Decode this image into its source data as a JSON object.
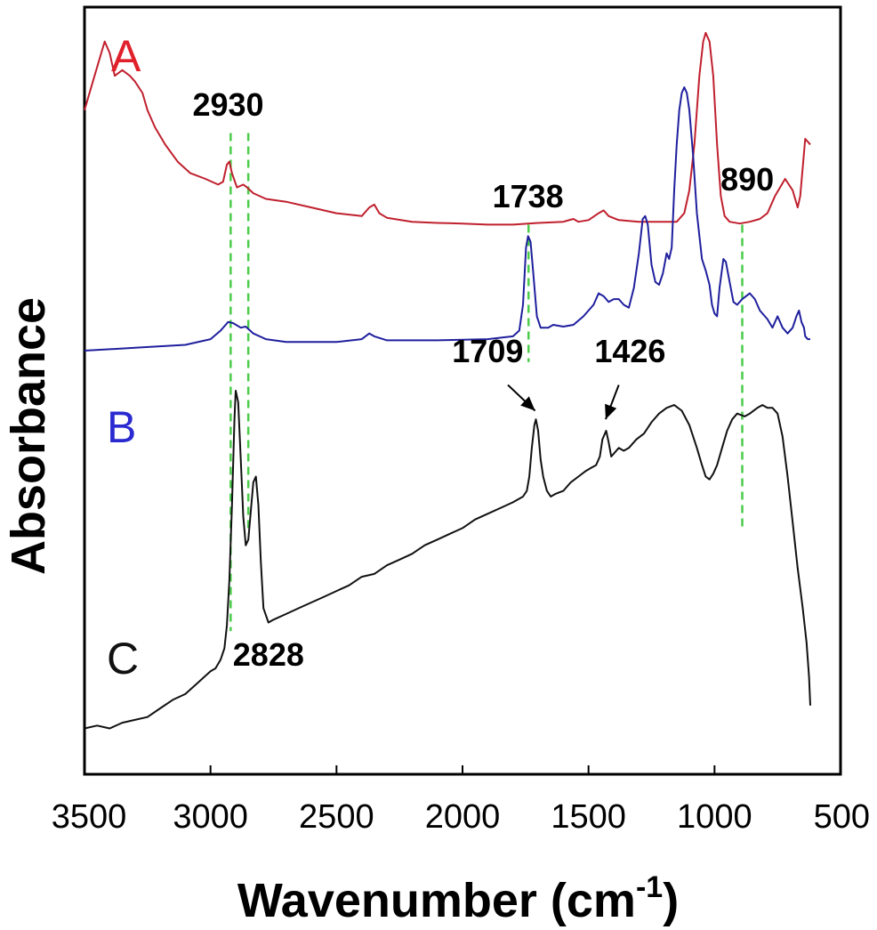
{
  "chart_data": {
    "type": "line",
    "xlabel_main": "Wavenumber (cm",
    "xlabel_sup": "-1",
    "xlabel_close": ")",
    "ylabel": "Absorbance",
    "xlim": [
      3500,
      500
    ],
    "x_reversed": true,
    "x_ticks": [
      3500,
      3000,
      2500,
      2000,
      1500,
      1000,
      500
    ],
    "y_ticks": [],
    "grid": false,
    "legend": "none",
    "series": [
      {
        "name": "A",
        "color": "#c0202e",
        "label_color": "#e0202a",
        "points": [
          [
            3500,
            0.44
          ],
          [
            3460,
            0.5
          ],
          [
            3420,
            0.56
          ],
          [
            3400,
            0.54
          ],
          [
            3380,
            0.5
          ],
          [
            3350,
            0.51
          ],
          [
            3320,
            0.5
          ],
          [
            3300,
            0.49
          ],
          [
            3270,
            0.47
          ],
          [
            3250,
            0.44
          ],
          [
            3220,
            0.41
          ],
          [
            3180,
            0.38
          ],
          [
            3130,
            0.35
          ],
          [
            3080,
            0.33
          ],
          [
            3020,
            0.32
          ],
          [
            2970,
            0.31
          ],
          [
            2950,
            0.315
          ],
          [
            2935,
            0.345
          ],
          [
            2925,
            0.35
          ],
          [
            2915,
            0.33
          ],
          [
            2895,
            0.305
          ],
          [
            2870,
            0.31
          ],
          [
            2855,
            0.305
          ],
          [
            2830,
            0.295
          ],
          [
            2780,
            0.285
          ],
          [
            2700,
            0.28
          ],
          [
            2600,
            0.27
          ],
          [
            2500,
            0.26
          ],
          [
            2400,
            0.255
          ],
          [
            2370,
            0.27
          ],
          [
            2350,
            0.275
          ],
          [
            2330,
            0.26
          ],
          [
            2300,
            0.252
          ],
          [
            2200,
            0.245
          ],
          [
            2100,
            0.243
          ],
          [
            2000,
            0.242
          ],
          [
            1900,
            0.24
          ],
          [
            1800,
            0.24
          ],
          [
            1740,
            0.242
          ],
          [
            1700,
            0.243
          ],
          [
            1600,
            0.245
          ],
          [
            1560,
            0.25
          ],
          [
            1540,
            0.245
          ],
          [
            1500,
            0.248
          ],
          [
            1460,
            0.26
          ],
          [
            1440,
            0.265
          ],
          [
            1420,
            0.255
          ],
          [
            1380,
            0.248
          ],
          [
            1300,
            0.245
          ],
          [
            1250,
            0.245
          ],
          [
            1200,
            0.245
          ],
          [
            1150,
            0.245
          ],
          [
            1120,
            0.26
          ],
          [
            1100,
            0.3
          ],
          [
            1080,
            0.38
          ],
          [
            1060,
            0.5
          ],
          [
            1045,
            0.56
          ],
          [
            1035,
            0.575
          ],
          [
            1020,
            0.56
          ],
          [
            1005,
            0.5
          ],
          [
            990,
            0.38
          ],
          [
            975,
            0.29
          ],
          [
            960,
            0.255
          ],
          [
            940,
            0.245
          ],
          [
            900,
            0.242
          ],
          [
            860,
            0.245
          ],
          [
            820,
            0.25
          ],
          [
            790,
            0.26
          ],
          [
            760,
            0.29
          ],
          [
            720,
            0.32
          ],
          [
            690,
            0.3
          ],
          [
            670,
            0.27
          ],
          [
            660,
            0.29
          ],
          [
            640,
            0.39
          ],
          [
            620,
            0.38
          ]
        ]
      },
      {
        "name": "B",
        "color": "#1f1f9e",
        "label_color": "#2a2ad0",
        "points": [
          [
            3500,
            0.02
          ],
          [
            3300,
            0.025
          ],
          [
            3100,
            0.03
          ],
          [
            3000,
            0.04
          ],
          [
            2960,
            0.055
          ],
          [
            2930,
            0.07
          ],
          [
            2910,
            0.068
          ],
          [
            2880,
            0.06
          ],
          [
            2860,
            0.062
          ],
          [
            2830,
            0.05
          ],
          [
            2780,
            0.04
          ],
          [
            2700,
            0.035
          ],
          [
            2600,
            0.035
          ],
          [
            2500,
            0.035
          ],
          [
            2400,
            0.04
          ],
          [
            2370,
            0.05
          ],
          [
            2350,
            0.045
          ],
          [
            2300,
            0.038
          ],
          [
            2100,
            0.038
          ],
          [
            1900,
            0.04
          ],
          [
            1800,
            0.045
          ],
          [
            1775,
            0.055
          ],
          [
            1760,
            0.1
          ],
          [
            1748,
            0.2
          ],
          [
            1740,
            0.22
          ],
          [
            1730,
            0.21
          ],
          [
            1720,
            0.16
          ],
          [
            1705,
            0.08
          ],
          [
            1690,
            0.06
          ],
          [
            1660,
            0.06
          ],
          [
            1640,
            0.065
          ],
          [
            1600,
            0.062
          ],
          [
            1560,
            0.065
          ],
          [
            1520,
            0.08
          ],
          [
            1480,
            0.1
          ],
          [
            1460,
            0.12
          ],
          [
            1440,
            0.115
          ],
          [
            1420,
            0.105
          ],
          [
            1400,
            0.11
          ],
          [
            1380,
            0.11
          ],
          [
            1360,
            0.1
          ],
          [
            1340,
            0.095
          ],
          [
            1320,
            0.13
          ],
          [
            1300,
            0.19
          ],
          [
            1285,
            0.25
          ],
          [
            1275,
            0.255
          ],
          [
            1265,
            0.24
          ],
          [
            1250,
            0.17
          ],
          [
            1235,
            0.14
          ],
          [
            1220,
            0.135
          ],
          [
            1205,
            0.155
          ],
          [
            1190,
            0.19
          ],
          [
            1180,
            0.18
          ],
          [
            1170,
            0.2
          ],
          [
            1160,
            0.3
          ],
          [
            1150,
            0.38
          ],
          [
            1140,
            0.44
          ],
          [
            1130,
            0.47
          ],
          [
            1120,
            0.48
          ],
          [
            1110,
            0.47
          ],
          [
            1100,
            0.44
          ],
          [
            1085,
            0.36
          ],
          [
            1070,
            0.26
          ],
          [
            1050,
            0.18
          ],
          [
            1035,
            0.16
          ],
          [
            1020,
            0.135
          ],
          [
            1010,
            0.1
          ],
          [
            1000,
            0.085
          ],
          [
            990,
            0.08
          ],
          [
            980,
            0.13
          ],
          [
            965,
            0.18
          ],
          [
            955,
            0.175
          ],
          [
            940,
            0.14
          ],
          [
            925,
            0.105
          ],
          [
            910,
            0.1
          ],
          [
            890,
            0.11
          ],
          [
            860,
            0.12
          ],
          [
            840,
            0.11
          ],
          [
            820,
            0.09
          ],
          [
            790,
            0.075
          ],
          [
            770,
            0.06
          ],
          [
            750,
            0.08
          ],
          [
            730,
            0.06
          ],
          [
            710,
            0.05
          ],
          [
            690,
            0.06
          ],
          [
            675,
            0.08
          ],
          [
            665,
            0.09
          ],
          [
            655,
            0.07
          ],
          [
            645,
            0.06
          ],
          [
            640,
            0.045
          ],
          [
            630,
            0.04
          ],
          [
            620,
            0.04
          ]
        ]
      },
      {
        "name": "C",
        "color": "#111111",
        "label_color": "#111111",
        "points": [
          [
            3500,
            -0.64
          ],
          [
            3450,
            -0.635
          ],
          [
            3400,
            -0.64
          ],
          [
            3350,
            -0.63
          ],
          [
            3300,
            -0.625
          ],
          [
            3250,
            -0.62
          ],
          [
            3200,
            -0.605
          ],
          [
            3150,
            -0.59
          ],
          [
            3100,
            -0.58
          ],
          [
            3050,
            -0.56
          ],
          [
            3000,
            -0.54
          ],
          [
            2980,
            -0.535
          ],
          [
            2960,
            -0.52
          ],
          [
            2945,
            -0.5
          ],
          [
            2935,
            -0.46
          ],
          [
            2925,
            -0.38
          ],
          [
            2915,
            -0.25
          ],
          [
            2905,
            -0.1
          ],
          [
            2900,
            -0.05
          ],
          [
            2890,
            -0.07
          ],
          [
            2880,
            -0.17
          ],
          [
            2870,
            -0.27
          ],
          [
            2860,
            -0.32
          ],
          [
            2850,
            -0.31
          ],
          [
            2840,
            -0.26
          ],
          [
            2830,
            -0.21
          ],
          [
            2820,
            -0.2
          ],
          [
            2810,
            -0.25
          ],
          [
            2800,
            -0.35
          ],
          [
            2790,
            -0.43
          ],
          [
            2770,
            -0.455
          ],
          [
            2750,
            -0.45
          ],
          [
            2700,
            -0.44
          ],
          [
            2650,
            -0.43
          ],
          [
            2600,
            -0.42
          ],
          [
            2550,
            -0.41
          ],
          [
            2500,
            -0.4
          ],
          [
            2450,
            -0.39
          ],
          [
            2400,
            -0.375
          ],
          [
            2350,
            -0.37
          ],
          [
            2300,
            -0.355
          ],
          [
            2250,
            -0.345
          ],
          [
            2200,
            -0.335
          ],
          [
            2150,
            -0.32
          ],
          [
            2100,
            -0.31
          ],
          [
            2050,
            -0.3
          ],
          [
            2000,
            -0.29
          ],
          [
            1950,
            -0.275
          ],
          [
            1900,
            -0.265
          ],
          [
            1850,
            -0.255
          ],
          [
            1800,
            -0.245
          ],
          [
            1760,
            -0.235
          ],
          [
            1745,
            -0.225
          ],
          [
            1735,
            -0.2
          ],
          [
            1725,
            -0.15
          ],
          [
            1715,
            -0.11
          ],
          [
            1709,
            -0.1
          ],
          [
            1700,
            -0.12
          ],
          [
            1690,
            -0.17
          ],
          [
            1680,
            -0.2
          ],
          [
            1665,
            -0.225
          ],
          [
            1650,
            -0.235
          ],
          [
            1630,
            -0.23
          ],
          [
            1600,
            -0.225
          ],
          [
            1570,
            -0.21
          ],
          [
            1540,
            -0.2
          ],
          [
            1510,
            -0.19
          ],
          [
            1490,
            -0.185
          ],
          [
            1470,
            -0.18
          ],
          [
            1455,
            -0.165
          ],
          [
            1445,
            -0.135
          ],
          [
            1430,
            -0.12
          ],
          [
            1420,
            -0.14
          ],
          [
            1410,
            -0.165
          ],
          [
            1400,
            -0.16
          ],
          [
            1380,
            -0.15
          ],
          [
            1360,
            -0.155
          ],
          [
            1340,
            -0.15
          ],
          [
            1310,
            -0.135
          ],
          [
            1280,
            -0.125
          ],
          [
            1250,
            -0.105
          ],
          [
            1220,
            -0.09
          ],
          [
            1190,
            -0.08
          ],
          [
            1160,
            -0.075
          ],
          [
            1130,
            -0.085
          ],
          [
            1100,
            -0.11
          ],
          [
            1070,
            -0.15
          ],
          [
            1050,
            -0.18
          ],
          [
            1035,
            -0.2
          ],
          [
            1020,
            -0.205
          ],
          [
            1005,
            -0.195
          ],
          [
            990,
            -0.18
          ],
          [
            970,
            -0.15
          ],
          [
            950,
            -0.12
          ],
          [
            930,
            -0.1
          ],
          [
            910,
            -0.09
          ],
          [
            880,
            -0.095
          ],
          [
            860,
            -0.09
          ],
          [
            830,
            -0.08
          ],
          [
            810,
            -0.075
          ],
          [
            790,
            -0.08
          ],
          [
            770,
            -0.08
          ],
          [
            750,
            -0.09
          ],
          [
            730,
            -0.13
          ],
          [
            710,
            -0.2
          ],
          [
            690,
            -0.28
          ],
          [
            670,
            -0.36
          ],
          [
            650,
            -0.43
          ],
          [
            635,
            -0.49
          ],
          [
            625,
            -0.55
          ],
          [
            620,
            -0.6
          ]
        ]
      }
    ],
    "reference_lines": {
      "color": "#4ccc4c",
      "lines": [
        {
          "x": 2920,
          "y_top": 0.4,
          "y_bottom": -0.47
        },
        {
          "x": 2850,
          "y_top": 0.4,
          "y_bottom": -0.3
        },
        {
          "x": 1738,
          "y_top": 0.24,
          "y_bottom": 0.0
        },
        {
          "x": 890,
          "y_top": 0.24,
          "y_bottom": -0.29
        }
      ]
    },
    "annotations": [
      {
        "text": "2930",
        "x": 2930,
        "y": 0.43
      },
      {
        "text": "1738",
        "x": 1740,
        "y": 0.27
      },
      {
        "text": "890",
        "x": 870,
        "y": 0.3
      },
      {
        "text": "1709",
        "x": 1900,
        "y": -0.0
      },
      {
        "text": "1426",
        "x": 1335,
        "y": 0.0
      },
      {
        "text": "2828",
        "x": 2770,
        "y": -0.53
      }
    ],
    "arrows": [
      {
        "from_x": 1820,
        "from_y": -0.04,
        "to_x": 1712,
        "to_y": -0.085
      },
      {
        "from_x": 1380,
        "from_y": -0.04,
        "to_x": 1432,
        "to_y": -0.1
      }
    ]
  }
}
